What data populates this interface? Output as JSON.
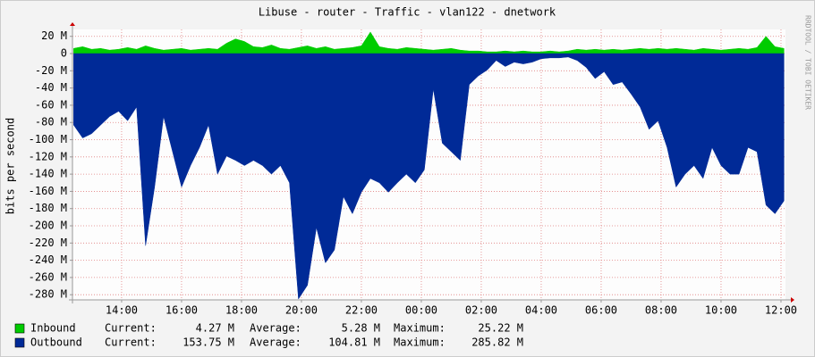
{
  "chart_data": {
    "type": "area",
    "title": "Libuse - router - Traffic - vlan122 - dnetwork",
    "y_label": "bits per second",
    "watermark": "RRDTOOL / TOBI OETIKER",
    "xlim": [
      12.36,
      36.15
    ],
    "xticks": [
      {
        "value": 14,
        "label": "14:00"
      },
      {
        "value": 16,
        "label": "16:00"
      },
      {
        "value": 18,
        "label": "18:00"
      },
      {
        "value": 20,
        "label": "20:00"
      },
      {
        "value": 22,
        "label": "22:00"
      },
      {
        "value": 24,
        "label": "00:00"
      },
      {
        "value": 26,
        "label": "02:00"
      },
      {
        "value": 28,
        "label": "04:00"
      },
      {
        "value": 30,
        "label": "06:00"
      },
      {
        "value": 32,
        "label": "08:00"
      },
      {
        "value": 34,
        "label": "10:00"
      },
      {
        "value": 36,
        "label": "12:00"
      }
    ],
    "ylim": [
      -286,
      28
    ],
    "yticks": [
      {
        "value": 20,
        "label": "20 M"
      },
      0,
      {
        "value": -20,
        "label": "-20 M"
      },
      {
        "value": -40,
        "label": "-40 M"
      },
      {
        "value": -60,
        "label": "-60 M"
      },
      {
        "value": -80,
        "label": "-80 M"
      },
      {
        "value": -100,
        "label": "-100 M"
      },
      {
        "value": -120,
        "label": "-120 M"
      },
      {
        "value": -140,
        "label": "-140 M"
      },
      {
        "value": -160,
        "label": "-160 M"
      },
      {
        "value": -180,
        "label": "-180 M"
      },
      {
        "value": -200,
        "label": "-200 M"
      },
      {
        "value": -220,
        "label": "-220 M"
      },
      {
        "value": -240,
        "label": "-240 M"
      },
      {
        "value": -260,
        "label": "-260 M"
      },
      {
        "value": -280,
        "label": "-280 M"
      }
    ],
    "grid": true,
    "x": [
      12.4,
      12.7,
      13.0,
      13.3,
      13.6,
      13.9,
      14.2,
      14.5,
      14.8,
      15.1,
      15.4,
      15.7,
      16.0,
      16.3,
      16.6,
      16.9,
      17.2,
      17.5,
      17.8,
      18.1,
      18.4,
      18.7,
      19.0,
      19.3,
      19.6,
      19.9,
      20.2,
      20.5,
      20.8,
      21.1,
      21.4,
      21.7,
      22.0,
      22.3,
      22.6,
      22.9,
      23.2,
      23.5,
      23.8,
      24.1,
      24.4,
      24.7,
      25.0,
      25.3,
      25.6,
      25.9,
      26.2,
      26.5,
      26.8,
      27.1,
      27.4,
      27.7,
      28.0,
      28.3,
      28.6,
      28.9,
      29.2,
      29.5,
      29.8,
      30.1,
      30.4,
      30.7,
      31.0,
      31.3,
      31.6,
      31.9,
      32.2,
      32.5,
      32.8,
      33.1,
      33.4,
      33.7,
      34.0,
      34.3,
      34.6,
      34.9,
      35.2,
      35.5,
      35.8,
      36.1
    ],
    "legend_labels": [
      "Current:",
      "Average:",
      "Maximum:"
    ],
    "series": [
      {
        "name": "Inbound",
        "color": "#00cc00",
        "stats": [
          "4.27 M",
          "5.28 M",
          "25.22 M"
        ],
        "values": [
          6,
          8,
          5,
          6,
          4,
          5,
          7,
          5,
          9,
          6,
          4,
          5,
          6,
          4,
          5,
          6,
          5,
          12,
          17,
          14,
          8,
          7,
          10,
          6,
          5,
          7,
          9,
          6,
          8,
          5,
          6,
          7,
          9,
          25,
          8,
          6,
          5,
          7,
          6,
          5,
          4,
          5,
          6,
          4,
          3,
          3,
          2,
          2,
          3,
          2,
          3,
          2,
          2,
          3,
          2,
          3,
          5,
          4,
          5,
          4,
          5,
          4,
          5,
          6,
          5,
          6,
          5,
          6,
          5,
          4,
          6,
          5,
          4,
          5,
          6,
          5,
          7,
          20,
          8,
          6
        ]
      },
      {
        "name": "Outbound",
        "color": "#002a97",
        "stats": [
          "153.75 M",
          "104.81 M",
          "285.82 M"
        ],
        "values": [
          -83,
          -98,
          -93,
          -83,
          -73,
          -67,
          -78,
          -62,
          -223,
          -155,
          -73,
          -114,
          -155,
          -130,
          -109,
          -83,
          -140,
          -119,
          -124,
          -130,
          -124,
          -130,
          -140,
          -130,
          -150,
          -285,
          -269,
          -202,
          -243,
          -228,
          -166,
          -186,
          -161,
          -145,
          -150,
          -161,
          -150,
          -140,
          -150,
          -135,
          -41,
          -104,
          -114,
          -124,
          -36,
          -26,
          -19,
          -8,
          -15,
          -10,
          -12,
          -10,
          -6,
          -5,
          -5,
          -4,
          -8,
          -16,
          -29,
          -21,
          -36,
          -33,
          -47,
          -62,
          -88,
          -78,
          -109,
          -155,
          -140,
          -130,
          -145,
          -109,
          -130,
          -140,
          -140,
          -109,
          -114,
          -176,
          -186,
          -171
        ]
      }
    ]
  }
}
